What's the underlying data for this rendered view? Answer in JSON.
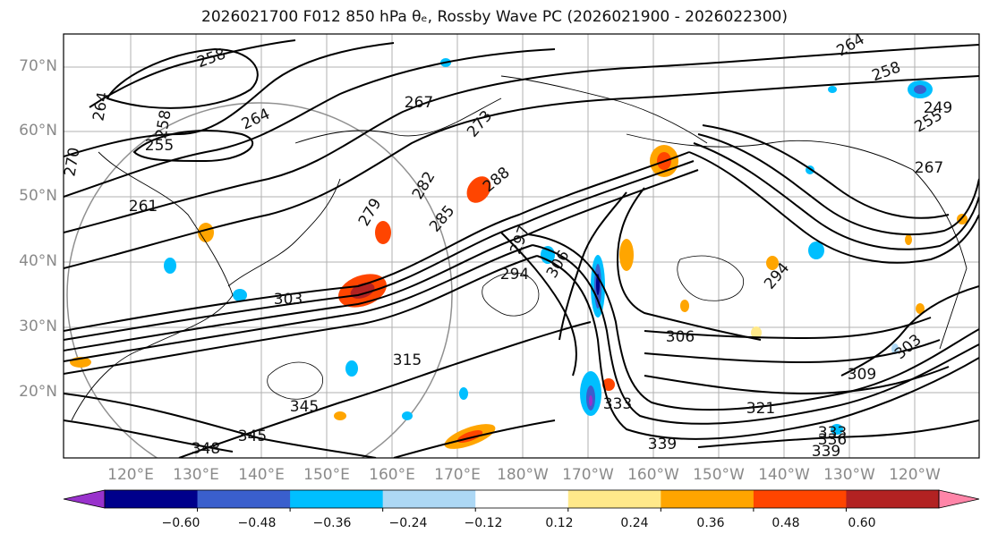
{
  "title": "2026021700 F012 850 hPa θₑ, Rossby Wave PC (2026021900 - 2026022300)",
  "lat_labels": [
    "70°N",
    "60°N",
    "50°N",
    "40°N",
    "30°N",
    "20°N"
  ],
  "lon_labels": [
    "120°E",
    "130°E",
    "140°E",
    "150°E",
    "160°E",
    "170°E",
    "180°W",
    "170°W",
    "160°W",
    "150°W",
    "140°W",
    "130°W",
    "120°W"
  ],
  "colorbar": {
    "ticks": [
      "−0.60",
      "−0.48",
      "−0.36",
      "−0.24",
      "−0.12",
      "0.12",
      "0.24",
      "0.36",
      "0.48",
      "0.60"
    ],
    "colors": [
      "#9932CC",
      "#00008B",
      "#3A5FCD",
      "#00BFFF",
      "#ADD8F5",
      "#FFFFFF",
      "#FFE98A",
      "#FFA500",
      "#FF4500",
      "#B22222",
      "#FF85A8"
    ]
  },
  "contour_labels": [
    {
      "text": "264"
    },
    {
      "text": "258"
    },
    {
      "text": "258"
    },
    {
      "text": "264"
    },
    {
      "text": "267"
    },
    {
      "text": "255"
    },
    {
      "text": "270"
    },
    {
      "text": "279"
    },
    {
      "text": "282"
    },
    {
      "text": "285"
    },
    {
      "text": "288"
    },
    {
      "text": "303"
    },
    {
      "text": "297"
    },
    {
      "text": "294"
    },
    {
      "text": "306"
    },
    {
      "text": "306"
    },
    {
      "text": "315"
    },
    {
      "text": "321"
    },
    {
      "text": "333"
    },
    {
      "text": "339"
    },
    {
      "text": "339"
    },
    {
      "text": "336"
    },
    {
      "text": "333"
    },
    {
      "text": "348"
    },
    {
      "text": "345"
    },
    {
      "text": "345"
    },
    {
      "text": "309"
    },
    {
      "text": "303"
    },
    {
      "text": "294"
    },
    {
      "text": "264"
    },
    {
      "text": "258"
    },
    {
      "text": "249"
    },
    {
      "text": "255"
    },
    {
      "text": "267"
    },
    {
      "text": "261"
    },
    {
      "text": "273"
    }
  ]
}
